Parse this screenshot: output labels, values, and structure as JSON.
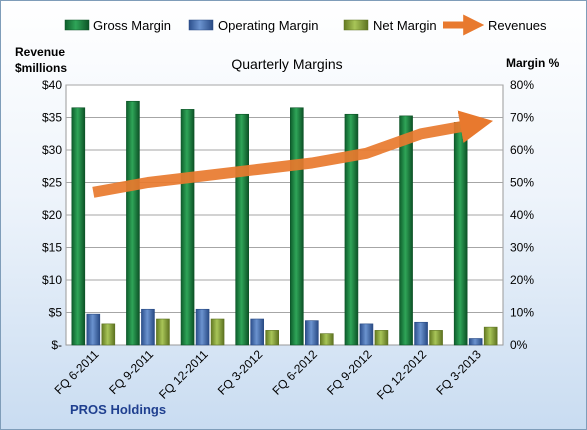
{
  "chart_data": {
    "type": "bar",
    "title": "Quarterly Margins",
    "company": "PROS Holdings",
    "categories": [
      "FQ 6-2011",
      "FQ 9-2011",
      "FQ 12-2011",
      "FQ 3-2012",
      "FQ 6-2012",
      "FQ 9-2012",
      "FQ 12-2012",
      "FQ 3-2013"
    ],
    "left_axis": {
      "label_line1": "Revenue",
      "label_line2": "$millions",
      "ylim": [
        0,
        40
      ],
      "ticks": [
        0,
        5,
        10,
        15,
        20,
        25,
        30,
        35,
        40
      ],
      "tick_labels": [
        "$-",
        "$5",
        "$10",
        "$15",
        "$20",
        "$25",
        "$30",
        "$35",
        "$40"
      ]
    },
    "right_axis": {
      "label": "Margin %",
      "ylim": [
        0,
        80
      ],
      "ticks": [
        0,
        10,
        20,
        30,
        40,
        50,
        60,
        70,
        80
      ],
      "tick_labels": [
        "0%",
        "10%",
        "20%",
        "30%",
        "40%",
        "50%",
        "60%",
        "70%",
        "80%"
      ]
    },
    "series": [
      {
        "name": "Gross Margin",
        "kind": "bar",
        "axis": "right",
        "color": "#1f8a45",
        "values": [
          73,
          75,
          72.5,
          71,
          73,
          71,
          70.5,
          68.5
        ]
      },
      {
        "name": "Operating Margin",
        "kind": "bar",
        "axis": "right",
        "color": "#4f78b8",
        "values": [
          9.5,
          11,
          11,
          8,
          7.5,
          6.5,
          7,
          2
        ]
      },
      {
        "name": "Net Margin",
        "kind": "bar",
        "axis": "right",
        "color": "#8fae3c",
        "values": [
          6.5,
          8,
          8,
          4.5,
          3.5,
          4.5,
          4.5,
          5.5
        ]
      },
      {
        "name": "Revenues",
        "kind": "line",
        "axis": "left",
        "color": "#e8792e",
        "values": [
          23.5,
          25,
          26,
          27,
          28,
          29.5,
          32.5,
          34
        ]
      }
    ],
    "grid": true,
    "legend_position": "top"
  }
}
